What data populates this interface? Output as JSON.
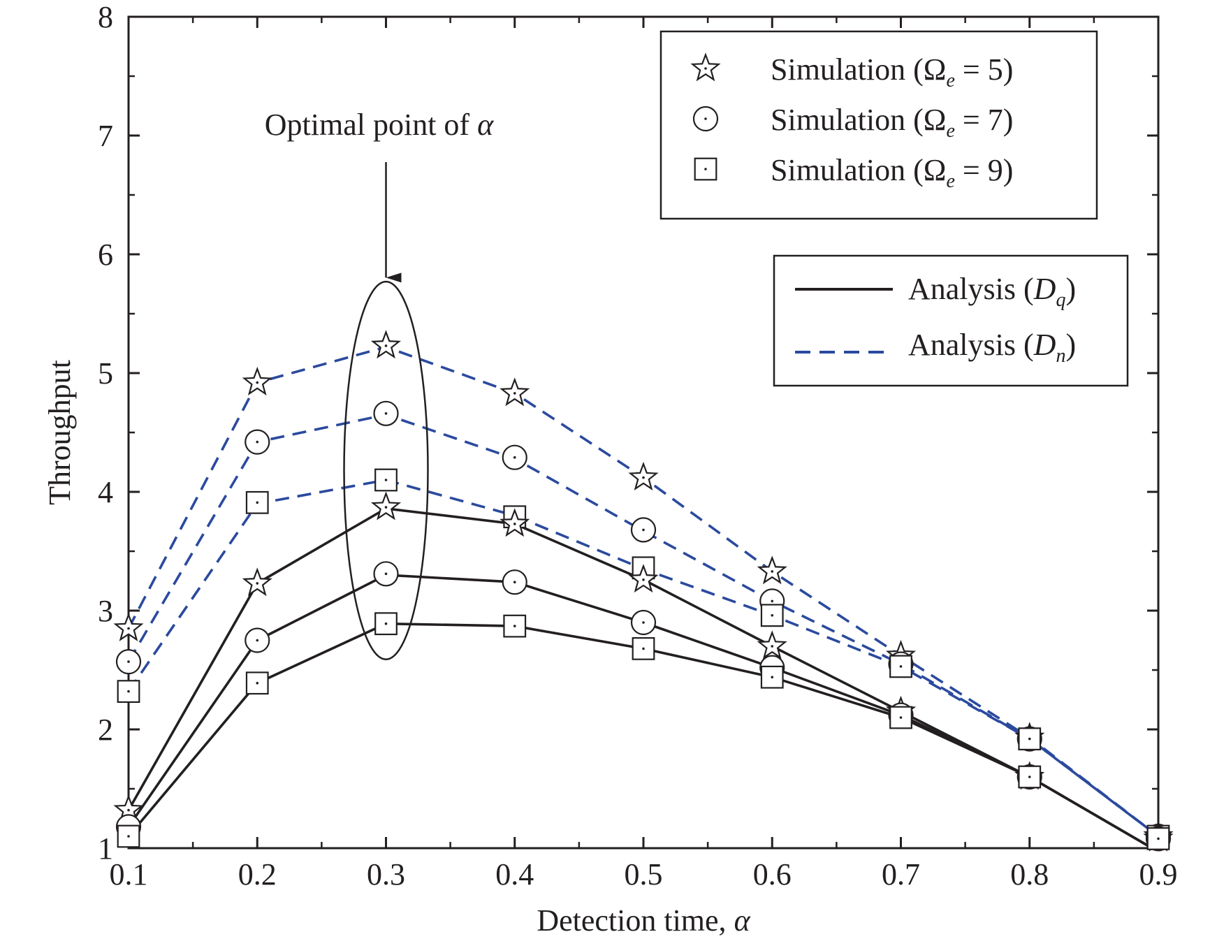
{
  "chart_data": {
    "type": "line",
    "xlabel_prefix": "Detection time, ",
    "xlabel_symbol": "α",
    "ylabel": "Throughput",
    "xlim": [
      0.1,
      0.9
    ],
    "ylim": [
      1,
      8
    ],
    "x_ticks": [
      "0.1",
      "0.2",
      "0.3",
      "0.4",
      "0.5",
      "0.6",
      "0.7",
      "0.8",
      "0.9"
    ],
    "y_ticks": [
      "1",
      "2",
      "3",
      "4",
      "5",
      "6",
      "7",
      "8"
    ],
    "x": [
      0.1,
      0.2,
      0.3,
      0.4,
      0.5,
      0.6,
      0.7,
      0.8,
      0.9
    ],
    "colors": {
      "dq": "#231f20",
      "dn": "#2b4a9e",
      "axis": "#231f20"
    },
    "annotation": {
      "prefix": "Optimal point of ",
      "symbol": "α",
      "x": 0.3
    },
    "legend_markers": {
      "items": [
        {
          "marker": "star",
          "prefix": "Simulation (Ω",
          "sub": "e",
          "suffix": " = 5)"
        },
        {
          "marker": "circle",
          "prefix": "Simulation (Ω",
          "sub": "e",
          "suffix": " = 7)"
        },
        {
          "marker": "square",
          "prefix": "Simulation (Ω",
          "sub": "e",
          "suffix": " = 9)"
        }
      ],
      "placement": "top-right"
    },
    "legend_lines": {
      "items": [
        {
          "style": "solid",
          "color_key": "dq",
          "prefix": "Analysis (",
          "var": "D",
          "sub": "q",
          "suffix": ")"
        },
        {
          "style": "dashed",
          "color_key": "dn",
          "prefix": "Analysis (",
          "var": "D",
          "sub": "n",
          "suffix": ")"
        }
      ],
      "placement": "right"
    },
    "series": [
      {
        "line": "dn",
        "marker": "star",
        "omega": 5,
        "values": [
          2.85,
          4.92,
          5.22,
          4.83,
          4.12,
          3.33,
          2.62,
          1.93,
          1.1
        ],
        "sim": [
          2.85,
          4.92,
          5.23,
          4.83,
          4.12,
          3.33,
          2.62,
          1.93,
          1.1
        ]
      },
      {
        "line": "dn",
        "marker": "circle",
        "omega": 7,
        "values": [
          2.57,
          4.42,
          4.65,
          4.28,
          3.67,
          3.08,
          2.55,
          1.92,
          1.1
        ],
        "sim": [
          2.57,
          4.42,
          4.66,
          4.29,
          3.68,
          3.08,
          2.55,
          1.92,
          1.1
        ]
      },
      {
        "line": "dn",
        "marker": "square",
        "omega": 9,
        "values": [
          2.32,
          3.9,
          4.1,
          3.8,
          3.35,
          2.96,
          2.53,
          1.92,
          1.1
        ],
        "sim": [
          2.32,
          3.91,
          4.1,
          3.79,
          3.36,
          2.96,
          2.53,
          1.92,
          1.1
        ]
      },
      {
        "line": "dq",
        "marker": "star",
        "omega": 5,
        "values": [
          1.32,
          3.23,
          3.86,
          3.73,
          3.26,
          2.7,
          2.15,
          1.6,
          0.97
        ],
        "sim": [
          1.32,
          3.23,
          3.87,
          3.73,
          3.26,
          2.7,
          2.15,
          1.6,
          1.08
        ]
      },
      {
        "line": "dq",
        "marker": "circle",
        "omega": 7,
        "values": [
          1.18,
          2.75,
          3.3,
          3.24,
          2.9,
          2.52,
          2.12,
          1.6,
          0.97
        ],
        "sim": [
          1.18,
          2.75,
          3.31,
          3.24,
          2.9,
          2.52,
          2.12,
          1.6,
          1.08
        ]
      },
      {
        "line": "dq",
        "marker": "square",
        "omega": 9,
        "values": [
          1.1,
          2.39,
          2.89,
          2.87,
          2.68,
          2.44,
          2.1,
          1.6,
          0.97
        ],
        "sim": [
          1.1,
          2.39,
          2.89,
          2.87,
          2.68,
          2.44,
          2.1,
          1.6,
          1.08
        ]
      }
    ]
  }
}
